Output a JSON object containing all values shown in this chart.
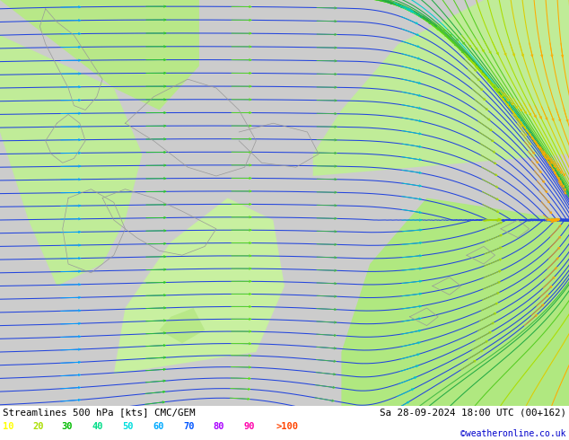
{
  "title_left": "Streamlines 500 hPa [kts] CMC/GEM",
  "title_right": "Sa 28-09-2024 18:00 UTC (00+162)",
  "credit": "©weatheronline.co.uk",
  "legend_values": [
    "10",
    "20",
    "30",
    "40",
    "50",
    "60",
    "70",
    "80",
    "90",
    ">100"
  ],
  "legend_colors": [
    "#ffff00",
    "#aadd00",
    "#00bb00",
    "#00dd88",
    "#00dddd",
    "#00aaff",
    "#0055ff",
    "#aa00ff",
    "#ff00aa",
    "#ff4400"
  ],
  "bg_color": "#d8d8d8",
  "fig_width": 6.34,
  "fig_height": 4.9,
  "dpi": 100,
  "bottom_bar_color": "#ffffff",
  "sea_color": "#d0d0d0",
  "land_color": "#c8f0a0",
  "land_dark": "#90dd60"
}
